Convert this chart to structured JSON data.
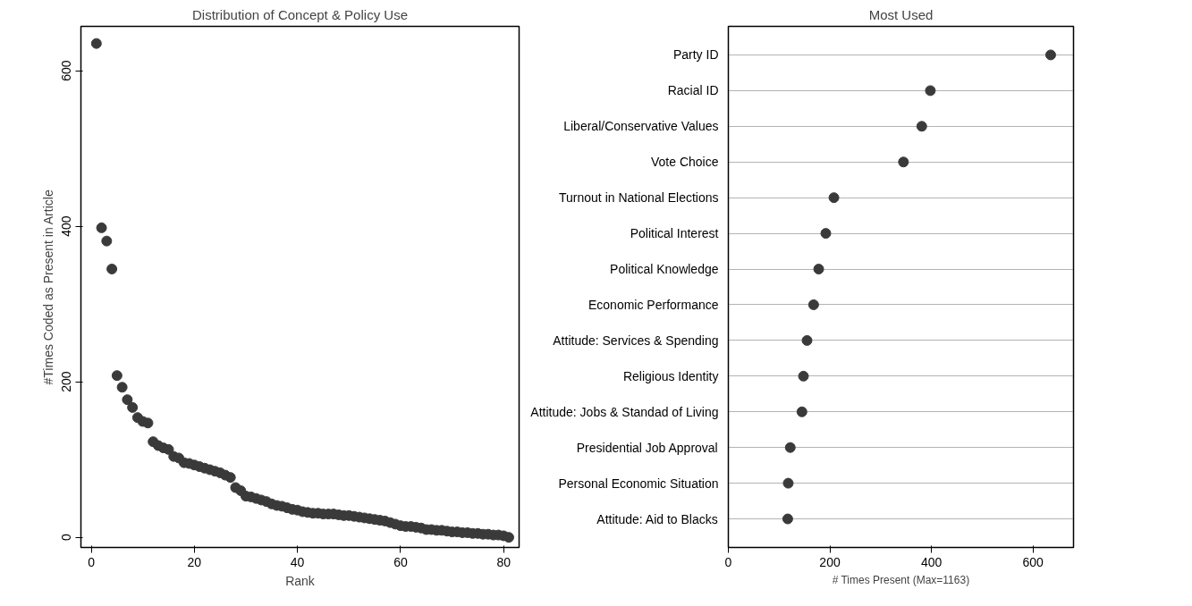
{
  "chart_data": [
    {
      "type": "scatter",
      "title": "Distribution of Concept & Policy Use",
      "xlabel": "Rank",
      "ylabel": "#Times Coded as Present in Article",
      "marker": "circle",
      "grid": false,
      "xlim": [
        -2,
        83
      ],
      "xticks": [
        0,
        20,
        40,
        60,
        80
      ],
      "ylim": [
        -13,
        657
      ],
      "yticks": [
        0,
        200,
        400,
        600
      ],
      "x": [
        1,
        2,
        3,
        4,
        5,
        6,
        7,
        8,
        9,
        10,
        11,
        12,
        13,
        14,
        15,
        16,
        17,
        18,
        19,
        20,
        21,
        22,
        23,
        24,
        25,
        26,
        27,
        28,
        29,
        30,
        31,
        32,
        33,
        34,
        35,
        36,
        37,
        38,
        39,
        40,
        41,
        42,
        43,
        44,
        45,
        46,
        47,
        48,
        49,
        50,
        51,
        52,
        53,
        54,
        55,
        56,
        57,
        58,
        59,
        60,
        61,
        62,
        63,
        64,
        65,
        66,
        67,
        68,
        69,
        70,
        71,
        72,
        73,
        74,
        75,
        76,
        77,
        78,
        79,
        80,
        81
      ],
      "series": [
        {
          "color": "#3a3a3a",
          "values": [
            635,
            398,
            381,
            345,
            208,
            193,
            177,
            167,
            154,
            149,
            147,
            123,
            118,
            115,
            113,
            104,
            102,
            96,
            95,
            93,
            91,
            89,
            87,
            85,
            83,
            80,
            77,
            64,
            60,
            53,
            52,
            50,
            48,
            46,
            43,
            41,
            40,
            38,
            36,
            35,
            33,
            32,
            31,
            31,
            30,
            30,
            30,
            29,
            28,
            28,
            27,
            26,
            25,
            24,
            23,
            22,
            21,
            19,
            17,
            15,
            14,
            14,
            13,
            12,
            10,
            10,
            9,
            9,
            8,
            7,
            7,
            6,
            6,
            5,
            5,
            4,
            4,
            3,
            3,
            2,
            0
          ]
        }
      ]
    },
    {
      "type": "scatter",
      "orientation": "horizontal",
      "title": "Most Used",
      "xlabel": "# Times Present (Max=1163)",
      "marker": "circle",
      "grid": "y",
      "xlim": [
        0,
        680
      ],
      "xticks": [
        0,
        200,
        400,
        600
      ],
      "categories": [
        "Party ID",
        "Racial ID",
        "Liberal/Conservative Values",
        "Vote Choice",
        "Turnout in National Elections",
        "Political Interest",
        "Political Knowledge",
        "Economic Performance",
        "Attitude: Services & Spending",
        "Religious Identity",
        "Attitude: Jobs & Standad of Living",
        "Presidential Job Approval",
        "Personal Economic Situation",
        "Attitude: Aid to Blacks"
      ],
      "series": [
        {
          "color": "#3a3a3a",
          "values": [
            635,
            398,
            381,
            345,
            208,
            192,
            178,
            168,
            155,
            148,
            145,
            122,
            118,
            117
          ]
        }
      ]
    }
  ]
}
